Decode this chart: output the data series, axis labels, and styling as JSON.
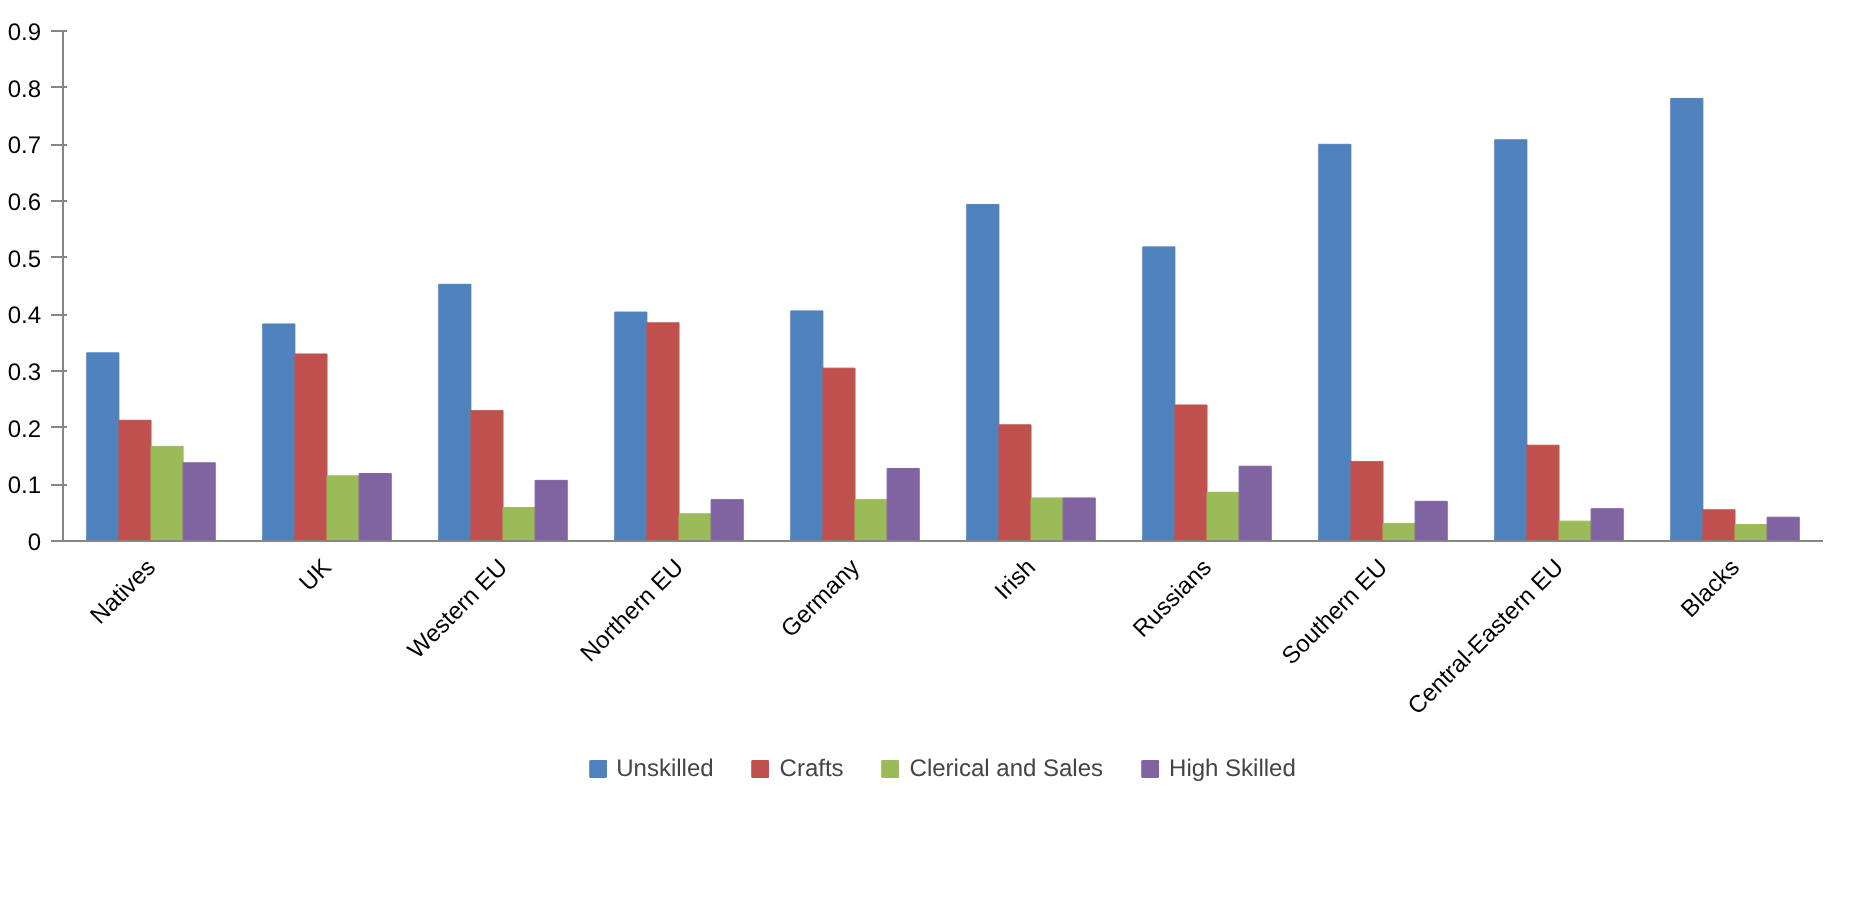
{
  "chart_data": {
    "type": "bar",
    "categories": [
      "Natives",
      "UK",
      "Western EU",
      "Northern EU",
      "Germany",
      "Irish",
      "Russians",
      "Southern EU",
      "Central-Eastern EU",
      "Blacks"
    ],
    "series": [
      {
        "name": "Unskilled",
        "color": "#4f81bd",
        "values": [
          0.332,
          0.383,
          0.453,
          0.404,
          0.406,
          0.594,
          0.519,
          0.7,
          0.708,
          0.781
        ]
      },
      {
        "name": "Crafts",
        "color": "#c0504d",
        "values": [
          0.213,
          0.33,
          0.23,
          0.385,
          0.305,
          0.205,
          0.24,
          0.14,
          0.169,
          0.055
        ]
      },
      {
        "name": "Clerical and Sales",
        "color": "#9bbb59",
        "values": [
          0.167,
          0.115,
          0.059,
          0.048,
          0.073,
          0.076,
          0.086,
          0.031,
          0.035,
          0.029
        ]
      },
      {
        "name": "High Skilled",
        "color": "#8064a2",
        "values": [
          0.138,
          0.119,
          0.107,
          0.073,
          0.128,
          0.076,
          0.132,
          0.07,
          0.057,
          0.042
        ]
      }
    ],
    "ylim": [
      0,
      0.9
    ],
    "yticks": [
      "0",
      0.1,
      0.2,
      0.3,
      0.4,
      0.5,
      0.6,
      0.7,
      0.8,
      0.9
    ],
    "grid": false,
    "legend": "bottom"
  }
}
